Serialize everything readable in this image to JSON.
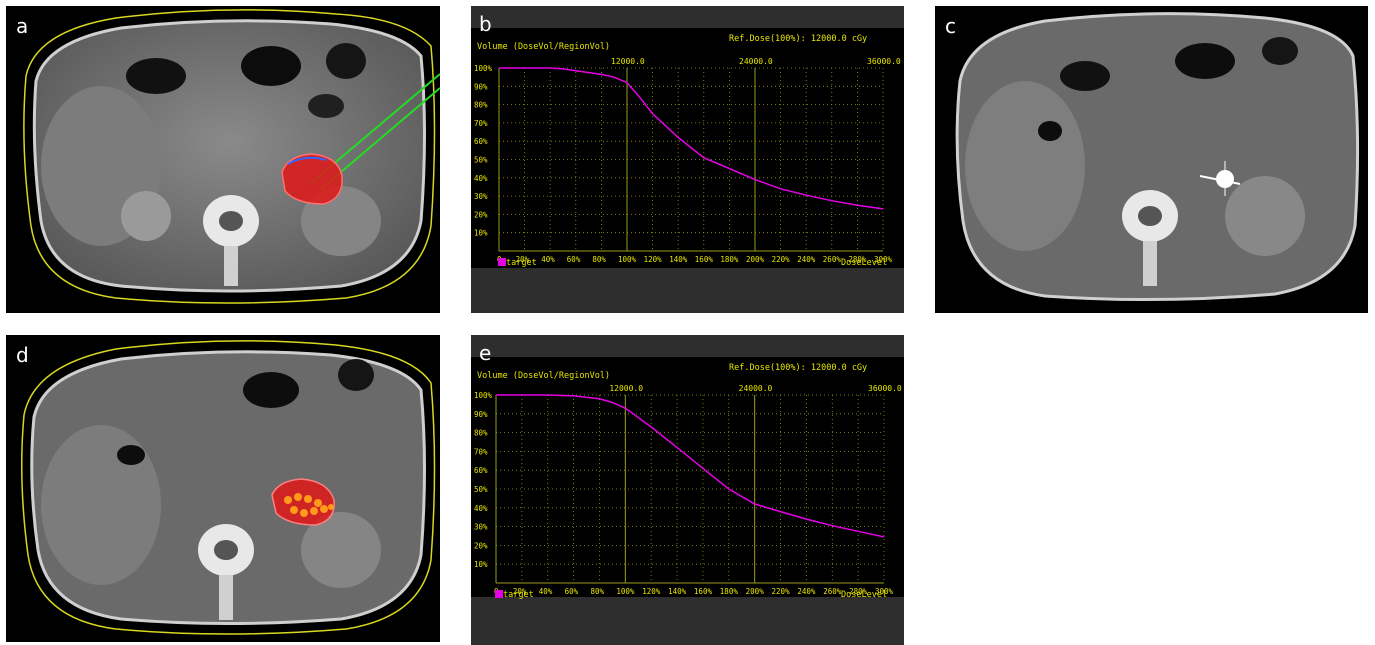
{
  "panels": {
    "a": {
      "label": "a"
    },
    "b": {
      "label": "b"
    },
    "c": {
      "label": "c"
    },
    "d": {
      "label": "d"
    },
    "e": {
      "label": "e"
    }
  },
  "dvh_charts": [
    {
      "ylabel": "Volume (DoseVol/RegionVol)",
      "ref_dose": "Ref.Dose(100%):  12000.0 cGy",
      "top_ticks": [
        "12000.0",
        "24000.0",
        "36000.0"
      ],
      "y_ticks": [
        "100%",
        "90%",
        "80%",
        "70%",
        "60%",
        "50%",
        "40%",
        "30%",
        "20%",
        "10%"
      ],
      "x_ticks": [
        "0",
        "20%",
        "40%",
        "60%",
        "80%",
        "100%",
        "120%",
        "140%",
        "160%",
        "180%",
        "200%",
        "220%",
        "240%",
        "260%",
        "280%",
        "300%"
      ],
      "legend": "target",
      "xlabel": "DoseLevel"
    },
    {
      "ylabel": "Volume (DoseVol/RegionVol)",
      "ref_dose": "Ref.Dose(100%):  12000.0 cGy",
      "top_ticks": [
        "12000.0",
        "24000.0",
        "36000.0"
      ],
      "y_ticks": [
        "100%",
        "90%",
        "80%",
        "70%",
        "60%",
        "50%",
        "40%",
        "30%",
        "20%",
        "10%"
      ],
      "x_ticks": [
        "0",
        "20%",
        "40%",
        "60%",
        "80%",
        "100%",
        "120%",
        "140%",
        "160%",
        "180%",
        "200%",
        "220%",
        "240%",
        "260%",
        "280%",
        "300%"
      ],
      "legend": "target",
      "xlabel": "DoseLevel"
    }
  ],
  "chart_data": [
    {
      "type": "line",
      "xlabel": "DoseLevel",
      "ylabel": "Volume (DoseVol/RegionVol)",
      "xlim": [
        0,
        300
      ],
      "ylim": [
        0,
        100
      ],
      "series": [
        {
          "name": "target",
          "color": "#e600e6",
          "x": [
            0,
            40,
            50,
            60,
            80,
            90,
            100,
            110,
            120,
            140,
            160,
            180,
            200,
            220,
            240,
            260,
            280,
            300
          ],
          "y": [
            100,
            100,
            99.5,
            98.5,
            96.5,
            95,
            92,
            84,
            75,
            62,
            51,
            45,
            39,
            34,
            30.5,
            27.5,
            25,
            23
          ]
        }
      ]
    },
    {
      "type": "line",
      "xlabel": "DoseLevel",
      "ylabel": "Volume (DoseVol/RegionVol)",
      "xlim": [
        0,
        300
      ],
      "ylim": [
        0,
        100
      ],
      "series": [
        {
          "name": "target",
          "color": "#e600e6",
          "x": [
            0,
            40,
            60,
            80,
            90,
            100,
            120,
            140,
            160,
            180,
            200,
            220,
            240,
            260,
            280,
            300
          ],
          "y": [
            100,
            100,
            99.5,
            98,
            96,
            93,
            83,
            72,
            61,
            50,
            42,
            38,
            34,
            30.5,
            27.5,
            24.5
          ]
        }
      ]
    }
  ],
  "colors": {
    "dose_line": "#e600e6",
    "grid": "#9a9a1a",
    "axis_text": "#e6e600",
    "contour": "#d8d820",
    "target": "#e01818",
    "needle": "#22dd22"
  }
}
